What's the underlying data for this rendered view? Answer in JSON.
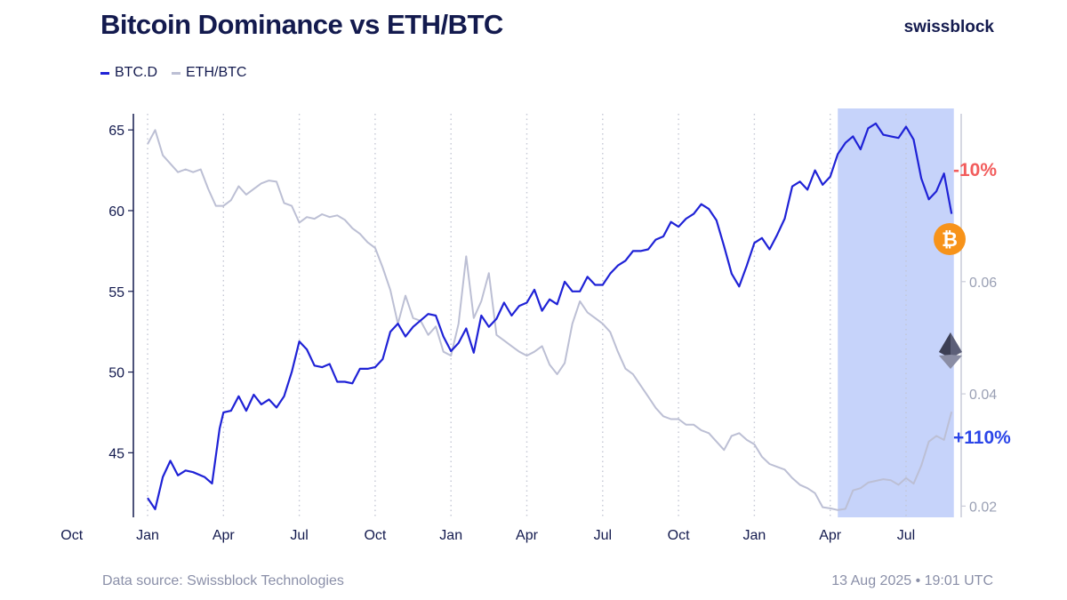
{
  "header": {
    "title": "Bitcoin Dominance vs ETH/BTC",
    "brand": "swissblock"
  },
  "footer": {
    "source": "Data source: Swissblock Technologies",
    "timestamp": "13 Aug 2025 • 19:01 UTC"
  },
  "colors": {
    "btc_line": "#1f22d6",
    "eth_line": "#bcbfd4",
    "highlight": "#c6d3fa",
    "btc_badge": "#f7931a",
    "neg": "#f25c5c",
    "pos": "#2b45e8"
  },
  "chart_data": {
    "type": "line",
    "title": "Bitcoin Dominance vs ETH/BTC",
    "x_ticks": [
      "Oct",
      "Jan",
      "Apr",
      "Jul",
      "Oct",
      "Jan",
      "Apr",
      "Jul",
      "Oct",
      "Jan",
      "Apr",
      "Jul"
    ],
    "x_tick_positions": [
      -1,
      0,
      1,
      2,
      3,
      4,
      5,
      6,
      7,
      8,
      9,
      10
    ],
    "x_range": [
      -1,
      10.85
    ],
    "left_axis": {
      "ticks": [
        45,
        50,
        55,
        60,
        65
      ],
      "range": [
        41,
        66
      ]
    },
    "right_axis": {
      "ticks": [
        "0.02",
        "0.04",
        "0.06"
      ],
      "tick_values": [
        0.02,
        0.04,
        0.06
      ],
      "range": [
        0.018,
        0.0899
      ]
    },
    "highlight_range": [
      9.1,
      10.63
    ],
    "series": [
      {
        "name": "BTC.D",
        "axis": "left",
        "x": [
          0,
          0.1,
          0.2,
          0.3,
          0.4,
          0.5,
          0.6,
          0.75,
          0.85,
          0.95,
          1.0,
          1.1,
          1.2,
          1.3,
          1.4,
          1.5,
          1.6,
          1.7,
          1.8,
          1.9,
          2.0,
          2.1,
          2.2,
          2.3,
          2.4,
          2.5,
          2.6,
          2.7,
          2.8,
          2.9,
          3.0,
          3.1,
          3.2,
          3.3,
          3.4,
          3.5,
          3.6,
          3.7,
          3.8,
          3.9,
          4.0,
          4.1,
          4.2,
          4.3,
          4.4,
          4.5,
          4.6,
          4.7,
          4.8,
          4.9,
          5.0,
          5.1,
          5.2,
          5.3,
          5.4,
          5.5,
          5.6,
          5.7,
          5.8,
          5.9,
          6.0,
          6.1,
          6.2,
          6.3,
          6.4,
          6.5,
          6.6,
          6.7,
          6.8,
          6.9,
          7.0,
          7.1,
          7.2,
          7.3,
          7.4,
          7.5,
          7.6,
          7.7,
          7.8,
          7.9,
          8.0,
          8.1,
          8.2,
          8.3,
          8.4,
          8.5,
          8.6,
          8.7,
          8.8,
          8.9,
          9.0,
          9.1,
          9.2,
          9.3,
          9.4,
          9.5,
          9.6,
          9.7,
          9.8,
          9.9,
          10.0,
          10.1,
          10.2,
          10.3,
          10.4,
          10.5,
          10.6
        ],
        "values": [
          42.2,
          41.5,
          43.5,
          44.5,
          43.6,
          43.9,
          43.8,
          43.5,
          43.1,
          46.5,
          47.5,
          47.6,
          48.5,
          47.6,
          48.6,
          48.0,
          48.3,
          47.8,
          48.5,
          50.0,
          51.9,
          51.4,
          50.4,
          50.3,
          50.5,
          49.4,
          49.4,
          49.3,
          50.2,
          50.2,
          50.3,
          50.8,
          52.5,
          53.0,
          52.2,
          52.8,
          53.2,
          53.6,
          53.5,
          52.2,
          51.3,
          51.8,
          52.7,
          51.2,
          53.5,
          52.8,
          53.3,
          54.3,
          53.5,
          54.1,
          54.3,
          55.1,
          53.8,
          54.5,
          54.2,
          55.6,
          55.0,
          55.0,
          55.9,
          55.4,
          55.4,
          56.1,
          56.6,
          56.9,
          57.5,
          57.5,
          57.6,
          58.2,
          58.4,
          59.3,
          59.0,
          59.5,
          59.8,
          60.4,
          60.1,
          59.4,
          57.8,
          56.1,
          55.3,
          56.6,
          58.0,
          58.3,
          57.6,
          58.5,
          59.5,
          61.5,
          61.8,
          61.3,
          62.5,
          61.6,
          62.1,
          63.5,
          64.2,
          64.6,
          63.8,
          65.1,
          65.4,
          64.7,
          64.6,
          64.5,
          65.2,
          64.4,
          62.0,
          60.7,
          61.2,
          62.3,
          59.8
        ]
      },
      {
        "name": "ETH/BTC",
        "axis": "right",
        "x": [
          0,
          0.1,
          0.2,
          0.3,
          0.4,
          0.5,
          0.6,
          0.7,
          0.8,
          0.9,
          1.0,
          1.1,
          1.2,
          1.3,
          1.4,
          1.5,
          1.6,
          1.7,
          1.8,
          1.9,
          2.0,
          2.1,
          2.2,
          2.3,
          2.4,
          2.5,
          2.6,
          2.7,
          2.8,
          2.9,
          3.0,
          3.1,
          3.2,
          3.3,
          3.4,
          3.5,
          3.6,
          3.7,
          3.8,
          3.9,
          4.0,
          4.1,
          4.2,
          4.3,
          4.4,
          4.5,
          4.6,
          4.7,
          4.8,
          4.9,
          5.0,
          5.1,
          5.2,
          5.3,
          5.4,
          5.5,
          5.6,
          5.7,
          5.8,
          5.9,
          6.0,
          6.1,
          6.2,
          6.3,
          6.4,
          6.5,
          6.6,
          6.7,
          6.8,
          6.9,
          7.0,
          7.1,
          7.2,
          7.3,
          7.4,
          7.5,
          7.6,
          7.7,
          7.8,
          7.9,
          8.0,
          8.1,
          8.2,
          8.3,
          8.4,
          8.5,
          8.6,
          8.7,
          8.8,
          8.9,
          9.0,
          9.1,
          9.2,
          9.3,
          9.4,
          9.5,
          9.6,
          9.7,
          9.8,
          9.9,
          10.0,
          10.1,
          10.2,
          10.3,
          10.4,
          10.5,
          10.6
        ],
        "values": [
          0.0845,
          0.087,
          0.0825,
          0.081,
          0.0795,
          0.08,
          0.0795,
          0.08,
          0.0765,
          0.0735,
          0.0735,
          0.0745,
          0.077,
          0.0755,
          0.0765,
          0.0775,
          0.078,
          0.0778,
          0.074,
          0.0735,
          0.0705,
          0.0715,
          0.0712,
          0.072,
          0.0715,
          0.0718,
          0.071,
          0.0695,
          0.0685,
          0.067,
          0.066,
          0.0625,
          0.0585,
          0.0525,
          0.0575,
          0.0535,
          0.053,
          0.0505,
          0.052,
          0.0475,
          0.0468,
          0.0525,
          0.0645,
          0.0535,
          0.0565,
          0.0615,
          0.0505,
          0.0495,
          0.0485,
          0.0475,
          0.0468,
          0.0475,
          0.0485,
          0.0452,
          0.0435,
          0.0455,
          0.0525,
          0.0565,
          0.0545,
          0.0535,
          0.0525,
          0.051,
          0.0475,
          0.0445,
          0.0435,
          0.0415,
          0.0395,
          0.0375,
          0.036,
          0.0355,
          0.0355,
          0.0345,
          0.0345,
          0.0335,
          0.033,
          0.0315,
          0.03,
          0.0325,
          0.033,
          0.0318,
          0.031,
          0.0288,
          0.0275,
          0.027,
          0.0265,
          0.025,
          0.0238,
          0.0232,
          0.0223,
          0.0198,
          0.0196,
          0.0193,
          0.0195,
          0.0228,
          0.0232,
          0.0242,
          0.0245,
          0.0248,
          0.0246,
          0.0238,
          0.025,
          0.024,
          0.0272,
          0.0315,
          0.0325,
          0.0318,
          0.0368
        ]
      }
    ],
    "annotations": {
      "btc_change": "-10%",
      "eth_change": "+110%"
    }
  }
}
